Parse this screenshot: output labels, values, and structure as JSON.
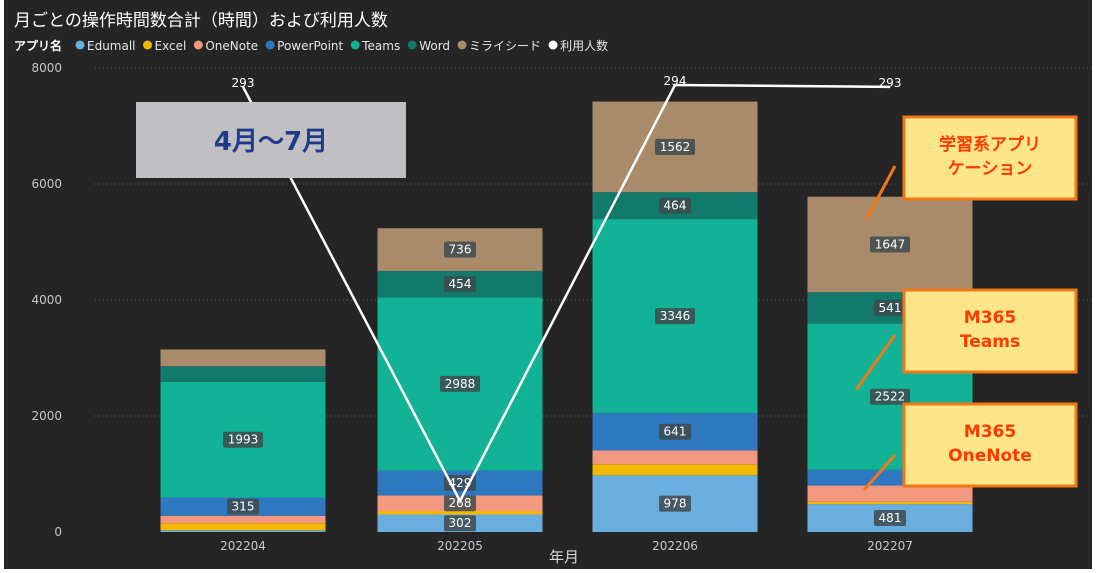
{
  "chart_data": {
    "type": "bar",
    "stacked": true,
    "title": "月ごとの操作時間数合計（時間）および利用人数",
    "legend_title": "アプリ名",
    "xlabel": "年月",
    "ylabel": "",
    "ylim": [
      0,
      8000
    ],
    "y_ticks": [
      "0",
      "2000",
      "4000",
      "6000",
      "8000"
    ],
    "grid": true,
    "legend_position": "top-left",
    "categories": [
      "202204",
      "202205",
      "202206",
      "202207"
    ],
    "series": [
      {
        "name": "Edumall",
        "color": "#6aaee0",
        "values": [
          30,
          302,
          978,
          481
        ],
        "labels": [
          "",
          "302",
          "978",
          "481"
        ]
      },
      {
        "name": "Excel",
        "color": "#f5b800",
        "values": [
          120,
          60,
          190,
          40
        ],
        "labels": [
          "",
          "",
          "",
          ""
        ]
      },
      {
        "name": "OneNote",
        "color": "#f29880",
        "values": [
          130,
          268,
          240,
          280
        ],
        "labels": [
          "",
          "268",
          "",
          ""
        ]
      },
      {
        "name": "PowerPoint",
        "color": "#2e78c0",
        "values": [
          315,
          429,
          641,
          270
        ],
        "labels": [
          "315",
          "429",
          "641",
          ""
        ]
      },
      {
        "name": "Teams",
        "color": "#12b297",
        "values": [
          1993,
          2988,
          3346,
          2522
        ],
        "labels": [
          "1993",
          "2988",
          "3346",
          "2522"
        ]
      },
      {
        "name": "Word",
        "color": "#127a6a",
        "values": [
          270,
          454,
          464,
          541
        ],
        "labels": [
          "",
          "454",
          "464",
          "541"
        ]
      },
      {
        "name": "ミライシード",
        "color": "#a98b6b",
        "values": [
          290,
          736,
          1562,
          1647
        ],
        "labels": [
          "",
          "736",
          "1562",
          "1647"
        ]
      }
    ],
    "line_series": {
      "name": "利用人数",
      "color": "#ffffff",
      "values": [
        293,
        69,
        294,
        293
      ],
      "labels": [
        "293",
        "",
        "294",
        "293"
      ]
    }
  },
  "annotations": {
    "period": "4月～7月",
    "callouts": [
      {
        "lines": [
          "学習系アプリ",
          "ケーション"
        ]
      },
      {
        "lines": [
          "M365",
          "Teams"
        ]
      },
      {
        "lines": [
          "M365",
          "OneNote"
        ]
      }
    ]
  }
}
